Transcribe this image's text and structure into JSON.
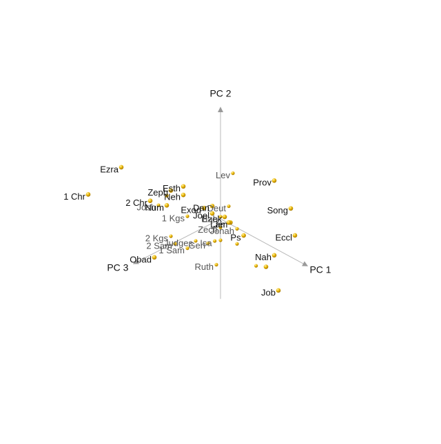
{
  "chart_data": {
    "type": "scatter",
    "projection": "3d",
    "axes": [
      "PC 1",
      "PC 2",
      "PC 3"
    ],
    "grid": false,
    "legend": "none",
    "colors": {
      "point": "#e8b400",
      "point_highlight": "#fff3a8",
      "axis": "#b8b8b8",
      "label_front": "#111111",
      "label_back": "#555555"
    },
    "points": [
      {
        "label": "Prov",
        "x": 0.55,
        "y": 0.55,
        "z": -0.1,
        "front": true
      },
      {
        "label": "Lev",
        "x": 0.1,
        "y": 0.45,
        "z": -0.05,
        "front": false
      },
      {
        "label": "Ezra",
        "x": -0.75,
        "y": 0.35,
        "z": 0.45,
        "front": true
      },
      {
        "label": "Esth",
        "x": -0.25,
        "y": 0.28,
        "z": 0.2,
        "front": true
      },
      {
        "label": "Song",
        "x": 0.6,
        "y": 0.25,
        "z": -0.25,
        "front": true
      },
      {
        "label": "Zeph",
        "x": -0.35,
        "y": 0.22,
        "z": 0.25,
        "front": true
      },
      {
        "label": "Neh",
        "x": -0.25,
        "y": 0.2,
        "z": 0.2,
        "front": true
      },
      {
        "label": "Eccl",
        "x": 0.75,
        "y": 0.1,
        "z": -0.15,
        "front": true
      },
      {
        "label": "Deut",
        "x": 0.05,
        "y": 0.12,
        "z": -0.05,
        "front": false
      },
      {
        "label": "Dan",
        "x": -0.05,
        "y": 0.12,
        "z": 0.05,
        "front": true
      },
      {
        "label": "Exod",
        "x": -0.1,
        "y": 0.1,
        "z": 0.1,
        "front": true
      },
      {
        "label": "Num",
        "x": -0.35,
        "y": 0.1,
        "z": 0.3,
        "front": true
      },
      {
        "label": "2 Chr",
        "x": -0.5,
        "y": 0.1,
        "z": 0.35,
        "front": true
      },
      {
        "label": "Josh",
        "x": -0.45,
        "y": 0.06,
        "z": 0.3,
        "front": false
      },
      {
        "label": "1 Chr",
        "x": -1.0,
        "y": 0.05,
        "z": 0.6,
        "front": true
      },
      {
        "label": "Joel",
        "x": -0.05,
        "y": 0.05,
        "z": 0.05,
        "front": true
      },
      {
        "label": "Ezek",
        "x": 0.05,
        "y": 0.04,
        "z": 0.0,
        "front": true
      },
      {
        "label": "Hab",
        "x": 0.0,
        "y": 0.02,
        "z": 0.0,
        "front": false
      },
      {
        "label": "Lam",
        "x": 0.1,
        "y": 0.0,
        "z": -0.02,
        "front": true
      },
      {
        "label": "Jer",
        "x": 0.09,
        "y": 0.0,
        "z": -0.01,
        "front": true
      },
      {
        "label": "1 Kgs",
        "x": -0.25,
        "y": -0.02,
        "z": 0.15,
        "front": false
      },
      {
        "label": "Jonah",
        "x": 0.15,
        "y": -0.05,
        "z": -0.05,
        "front": false
      },
      {
        "label": "Zech",
        "x": 0.0,
        "y": -0.08,
        "z": 0.0,
        "front": false
      },
      {
        "label": "Ps",
        "x": 0.18,
        "y": -0.12,
        "z": -0.1,
        "front": true
      },
      {
        "label": "Nah",
        "x": 0.55,
        "y": -0.15,
        "z": -0.1,
        "front": true
      },
      {
        "label": "2 Kgs",
        "x": -0.4,
        "y": -0.25,
        "z": 0.2,
        "front": false
      },
      {
        "label": "Judges",
        "x": -0.2,
        "y": -0.25,
        "z": 0.1,
        "front": false
      },
      {
        "label": "Gen",
        "x": -0.1,
        "y": -0.25,
        "z": 0.05,
        "front": false
      },
      {
        "label": "Isa",
        "x": -0.05,
        "y": -0.22,
        "z": 0.02,
        "front": false
      },
      {
        "label": "2 Sam",
        "x": -0.35,
        "y": -0.3,
        "z": 0.2,
        "front": false
      },
      {
        "label": "1 Sam",
        "x": -0.25,
        "y": -0.32,
        "z": 0.15,
        "front": false
      },
      {
        "label": "Obad",
        "x": -0.5,
        "y": -0.45,
        "z": 0.3,
        "front": true
      },
      {
        "label": "Ruth",
        "x": -0.05,
        "y": -0.45,
        "z": 0.0,
        "front": false
      },
      {
        "label": "Job",
        "x": 0.55,
        "y": -0.5,
        "z": -0.15,
        "front": true
      },
      {
        "label": "",
        "x": 0.45,
        "y": -0.3,
        "z": -0.1,
        "front": true
      },
      {
        "label": "",
        "x": 0.38,
        "y": -0.3,
        "z": -0.05,
        "front": false
      },
      {
        "label": "",
        "x": 0.2,
        "y": -0.15,
        "z": 0.0,
        "front": false
      },
      {
        "label": "",
        "x": -0.4,
        "y": 0.15,
        "z": 0.25,
        "front": false
      },
      {
        "label": "",
        "x": 0.0,
        "y": -0.2,
        "z": 0.0,
        "front": false
      }
    ]
  }
}
